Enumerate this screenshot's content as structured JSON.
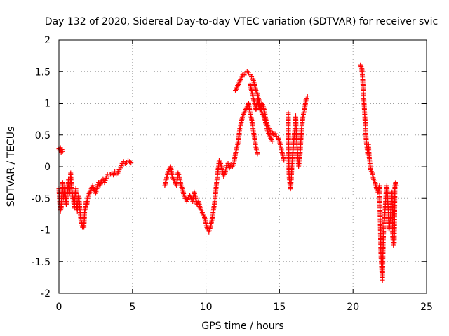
{
  "chart_data": {
    "type": "scatter",
    "title": "Day 132 of 2020, Sidereal Day-to-day VTEC variation (SDTVAR) for receiver svic",
    "xlabel": "GPS time / hours",
    "ylabel": "SDTVAR / TECUs",
    "xlim": [
      0,
      25
    ],
    "ylim": [
      -2,
      2
    ],
    "xticks": [
      0,
      5,
      10,
      15,
      20,
      25
    ],
    "yticks": [
      -2,
      -1.5,
      -1,
      -0.5,
      0,
      0.5,
      1,
      1.5,
      2
    ],
    "xtick_labels": [
      "0",
      "5",
      "10",
      "15",
      "20",
      "25"
    ],
    "ytick_labels": [
      "-2",
      "-1.5",
      "-1",
      "-0.5",
      "0",
      "0.5",
      "1",
      "1.5",
      "2"
    ],
    "grid": true,
    "marker": "+",
    "color": "#ff0000",
    "series": [
      {
        "name": "SDTVAR",
        "segments": [
          [
            [
              0.0,
              0.28
            ],
            [
              0.05,
              0.25
            ],
            [
              0.1,
              0.3
            ],
            [
              0.15,
              0.22
            ],
            [
              0.2,
              0.27
            ],
            [
              0.25,
              0.24
            ]
          ],
          [
            [
              0.0,
              -0.35
            ],
            [
              0.05,
              -0.55
            ],
            [
              0.1,
              -0.7
            ],
            [
              0.15,
              -0.65
            ],
            [
              0.2,
              -0.4
            ],
            [
              0.25,
              -0.25
            ],
            [
              0.3,
              -0.5
            ],
            [
              0.35,
              -0.45
            ],
            [
              0.4,
              -0.3
            ],
            [
              0.45,
              -0.5
            ],
            [
              0.5,
              -0.6
            ],
            [
              0.55,
              -0.45
            ],
            [
              0.6,
              -0.35
            ],
            [
              0.65,
              -0.2
            ],
            [
              0.7,
              -0.45
            ],
            [
              0.75,
              -0.35
            ],
            [
              0.8,
              -0.1
            ],
            [
              0.85,
              -0.3
            ],
            [
              0.9,
              -0.4
            ],
            [
              0.95,
              -0.5
            ],
            [
              1.0,
              -0.55
            ],
            [
              1.05,
              -0.65
            ],
            [
              1.1,
              -0.45
            ],
            [
              1.15,
              -0.35
            ],
            [
              1.2,
              -0.6
            ],
            [
              1.25,
              -0.7
            ],
            [
              1.3,
              -0.5
            ],
            [
              1.35,
              -0.45
            ],
            [
              1.4,
              -0.6
            ],
            [
              1.45,
              -0.75
            ],
            [
              1.5,
              -0.85
            ],
            [
              1.55,
              -0.9
            ],
            [
              1.6,
              -0.95
            ],
            [
              1.65,
              -0.93
            ],
            [
              1.7,
              -0.95
            ],
            [
              1.75,
              -0.7
            ],
            [
              1.8,
              -0.65
            ],
            [
              1.85,
              -0.55
            ],
            [
              1.9,
              -0.6
            ],
            [
              1.95,
              -0.5
            ],
            [
              2.0,
              -0.45
            ],
            [
              2.1,
              -0.4
            ],
            [
              2.2,
              -0.35
            ],
            [
              2.3,
              -0.3
            ],
            [
              2.4,
              -0.38
            ],
            [
              2.5,
              -0.42
            ],
            [
              2.6,
              -0.32
            ],
            [
              2.7,
              -0.25
            ],
            [
              2.8,
              -0.3
            ],
            [
              2.9,
              -0.22
            ],
            [
              3.0,
              -0.2
            ],
            [
              3.1,
              -0.25
            ],
            [
              3.2,
              -0.18
            ],
            [
              3.3,
              -0.12
            ],
            [
              3.4,
              -0.15
            ],
            [
              3.5,
              -0.12
            ],
            [
              3.6,
              -0.1
            ],
            [
              3.7,
              -0.13
            ],
            [
              3.8,
              -0.08
            ],
            [
              3.9,
              -0.12
            ],
            [
              4.0,
              -0.1
            ],
            [
              4.1,
              -0.05
            ],
            [
              4.2,
              -0.02
            ],
            [
              4.3,
              0.05
            ],
            [
              4.4,
              0.08
            ],
            [
              4.5,
              0.05
            ],
            [
              4.6,
              0.07
            ],
            [
              4.7,
              0.1
            ],
            [
              4.8,
              0.08
            ],
            [
              4.9,
              0.06
            ]
          ],
          [
            [
              7.2,
              -0.3
            ],
            [
              7.3,
              -0.2
            ],
            [
              7.4,
              -0.1
            ],
            [
              7.5,
              -0.05
            ],
            [
              7.6,
              0.0
            ],
            [
              7.7,
              -0.15
            ],
            [
              7.8,
              -0.2
            ],
            [
              7.9,
              -0.25
            ],
            [
              8.0,
              -0.3
            ],
            [
              8.1,
              -0.1
            ],
            [
              8.2,
              -0.15
            ],
            [
              8.3,
              -0.3
            ],
            [
              8.4,
              -0.35
            ],
            [
              8.5,
              -0.45
            ],
            [
              8.6,
              -0.5
            ],
            [
              8.7,
              -0.55
            ],
            [
              8.8,
              -0.48
            ],
            [
              8.9,
              -0.45
            ],
            [
              9.0,
              -0.5
            ],
            [
              9.1,
              -0.55
            ],
            [
              9.2,
              -0.4
            ],
            [
              9.3,
              -0.5
            ],
            [
              9.4,
              -0.6
            ],
            [
              9.5,
              -0.55
            ],
            [
              9.6,
              -0.65
            ],
            [
              9.7,
              -0.7
            ],
            [
              9.8,
              -0.75
            ],
            [
              9.9,
              -0.8
            ],
            [
              10.0,
              -0.9
            ],
            [
              10.1,
              -0.98
            ],
            [
              10.2,
              -1.03
            ],
            [
              10.3,
              -0.95
            ],
            [
              10.4,
              -0.85
            ],
            [
              10.5,
              -0.7
            ],
            [
              10.6,
              -0.55
            ],
            [
              10.7,
              -0.3
            ],
            [
              10.8,
              -0.1
            ],
            [
              10.9,
              0.1
            ],
            [
              11.0,
              0.05
            ],
            [
              11.1,
              -0.05
            ],
            [
              11.2,
              -0.15
            ],
            [
              11.3,
              -0.1
            ],
            [
              11.4,
              0.02
            ],
            [
              11.5,
              0.05
            ],
            [
              11.6,
              -0.02
            ],
            [
              11.7,
              0.03
            ],
            [
              11.8,
              0.0
            ],
            [
              11.9,
              0.05
            ],
            [
              12.0,
              0.2
            ],
            [
              12.1,
              0.3
            ],
            [
              12.2,
              0.4
            ],
            [
              12.3,
              0.6
            ],
            [
              12.4,
              0.7
            ],
            [
              12.5,
              0.8
            ],
            [
              12.6,
              0.85
            ],
            [
              12.7,
              0.9
            ],
            [
              12.8,
              0.95
            ],
            [
              12.9,
              1.0
            ],
            [
              13.0,
              0.85
            ],
            [
              13.1,
              0.75
            ],
            [
              13.2,
              0.6
            ],
            [
              13.3,
              0.45
            ],
            [
              13.4,
              0.3
            ],
            [
              13.5,
              0.2
            ]
          ],
          [
            [
              12.0,
              1.2
            ],
            [
              12.1,
              1.25
            ],
            [
              12.2,
              1.3
            ],
            [
              12.3,
              1.35
            ],
            [
              12.4,
              1.4
            ],
            [
              12.5,
              1.45
            ],
            [
              12.6,
              1.45
            ],
            [
              12.7,
              1.48
            ],
            [
              12.8,
              1.5
            ],
            [
              12.9,
              1.48
            ],
            [
              13.0,
              1.45
            ],
            [
              13.1,
              1.42
            ],
            [
              13.2,
              1.38
            ],
            [
              13.3,
              1.3
            ],
            [
              13.4,
              1.2
            ],
            [
              13.5,
              1.15
            ],
            [
              13.6,
              1.05
            ],
            [
              13.7,
              0.95
            ],
            [
              13.8,
              0.85
            ],
            [
              13.9,
              0.8
            ],
            [
              14.0,
              0.75
            ],
            [
              14.1,
              0.65
            ],
            [
              14.2,
              0.55
            ],
            [
              14.3,
              0.5
            ],
            [
              14.4,
              0.45
            ],
            [
              14.5,
              0.4
            ]
          ],
          [
            [
              13.0,
              1.3
            ],
            [
              13.1,
              1.2
            ],
            [
              13.2,
              1.1
            ],
            [
              13.3,
              1.0
            ],
            [
              13.4,
              0.9
            ],
            [
              13.5,
              1.05
            ],
            [
              13.6,
              0.95
            ],
            [
              13.7,
              0.9
            ],
            [
              13.8,
              1.0
            ],
            [
              13.9,
              0.95
            ],
            [
              14.0,
              0.85
            ],
            [
              14.1,
              0.7
            ],
            [
              14.2,
              0.65
            ],
            [
              14.3,
              0.6
            ],
            [
              14.4,
              0.55
            ],
            [
              14.5,
              0.55
            ],
            [
              14.6,
              0.5
            ],
            [
              14.7,
              0.52
            ],
            [
              14.8,
              0.48
            ],
            [
              14.9,
              0.45
            ],
            [
              15.0,
              0.4
            ],
            [
              15.1,
              0.3
            ],
            [
              15.2,
              0.2
            ],
            [
              15.3,
              0.1
            ]
          ],
          [
            [
              15.6,
              0.85
            ],
            [
              15.6,
              0.7
            ],
            [
              15.65,
              -0.15
            ],
            [
              15.7,
              -0.25
            ],
            [
              15.75,
              -0.35
            ],
            [
              15.8,
              -0.2
            ],
            [
              15.85,
              0.05
            ],
            [
              16.0,
              0.5
            ],
            [
              16.05,
              0.6
            ],
            [
              16.1,
              0.8
            ],
            [
              16.15,
              0.5
            ],
            [
              16.2,
              0.3
            ],
            [
              16.25,
              0.15
            ],
            [
              16.3,
              0.0
            ],
            [
              16.35,
              0.1
            ],
            [
              16.4,
              0.2
            ],
            [
              16.5,
              0.6
            ],
            [
              16.6,
              0.8
            ],
            [
              16.7,
              0.9
            ],
            [
              16.8,
              1.05
            ],
            [
              16.9,
              1.1
            ]
          ],
          [
            [
              20.5,
              1.6
            ],
            [
              20.6,
              1.55
            ],
            [
              20.65,
              1.4
            ],
            [
              20.7,
              1.2
            ],
            [
              20.75,
              1.0
            ],
            [
              20.8,
              0.8
            ],
            [
              20.85,
              0.6
            ],
            [
              20.9,
              0.4
            ],
            [
              20.95,
              0.3
            ],
            [
              21.0,
              0.2
            ],
            [
              21.05,
              0.35
            ],
            [
              21.1,
              0.15
            ],
            [
              21.2,
              -0.05
            ],
            [
              21.3,
              -0.1
            ],
            [
              21.4,
              -0.2
            ],
            [
              21.5,
              -0.25
            ],
            [
              21.6,
              -0.35
            ],
            [
              21.7,
              -0.4
            ],
            [
              21.8,
              -0.3
            ],
            [
              21.9,
              -1.4
            ],
            [
              21.95,
              -1.6
            ],
            [
              22.0,
              -1.8
            ],
            [
              22.05,
              -1.2
            ],
            [
              22.1,
              -0.9
            ],
            [
              22.15,
              -0.8
            ],
            [
              22.2,
              -0.6
            ],
            [
              22.25,
              -0.4
            ],
            [
              22.3,
              -0.3
            ],
            [
              22.35,
              -0.5
            ],
            [
              22.4,
              -0.7
            ],
            [
              22.45,
              -1.0
            ],
            [
              22.5,
              -0.9
            ],
            [
              22.55,
              -0.8
            ],
            [
              22.6,
              -0.5
            ],
            [
              22.65,
              -0.4
            ],
            [
              22.7,
              -1.1
            ],
            [
              22.75,
              -1.25
            ],
            [
              22.8,
              -1.2
            ],
            [
              22.85,
              -0.3
            ],
            [
              22.9,
              -0.25
            ],
            [
              22.95,
              -0.3
            ]
          ]
        ]
      }
    ]
  }
}
